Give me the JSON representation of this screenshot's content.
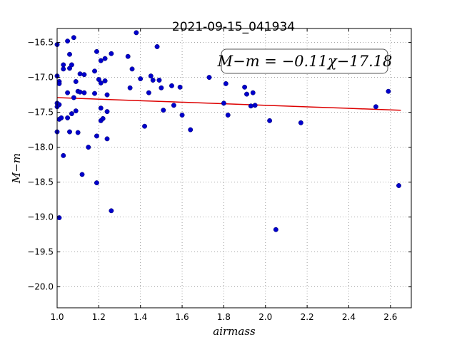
{
  "colors": {
    "points": "#0000cc",
    "fit_line": "#dd0000",
    "grid": "#888888",
    "frame": "#000000",
    "background": "#ffffff"
  },
  "chart_data": {
    "type": "scatter",
    "title": "2021-09-15_041934",
    "xlabel": "airmass",
    "ylabel": "M−m",
    "xlim": [
      1.0,
      2.7
    ],
    "ylim": [
      -20.3,
      -16.3
    ],
    "y_inverted": true,
    "grid": true,
    "x_ticks": [
      1.0,
      1.2,
      1.4,
      1.6,
      1.8,
      2.0,
      2.2,
      2.4,
      2.6
    ],
    "x_tick_labels": [
      "1.0",
      "1.2",
      "1.4",
      "1.6",
      "1.8",
      "2.0",
      "2.2",
      "2.4",
      "2.6"
    ],
    "y_ticks": [
      -16.5,
      -17.0,
      -17.5,
      -18.0,
      -18.5,
      -19.0,
      -19.5,
      -20.0
    ],
    "y_tick_labels": [
      "−16.5",
      "−17.0",
      "−17.5",
      "−18.0",
      "−18.5",
      "−19.0",
      "−19.5",
      "−20.0"
    ],
    "annotation": "M−m = −0.11χ−17.18",
    "fit": {
      "slope": -0.11,
      "intercept": -17.18,
      "x_range": [
        1.0,
        2.65
      ]
    },
    "points": [
      [
        1.0,
        -16.53
      ],
      [
        1.0,
        -16.98
      ],
      [
        1.01,
        -17.06
      ],
      [
        1.01,
        -17.09
      ],
      [
        1.0,
        -17.37
      ],
      [
        1.01,
        -17.39
      ],
      [
        1.0,
        -17.42
      ],
      [
        1.0,
        -17.78
      ],
      [
        1.01,
        -17.6
      ],
      [
        1.02,
        -17.58
      ],
      [
        1.01,
        -19.01
      ],
      [
        1.03,
        -16.82
      ],
      [
        1.03,
        -16.88
      ],
      [
        1.03,
        -18.12
      ],
      [
        1.05,
        -16.48
      ],
      [
        1.05,
        -17.22
      ],
      [
        1.05,
        -17.58
      ],
      [
        1.06,
        -16.67
      ],
      [
        1.06,
        -16.87
      ],
      [
        1.06,
        -17.78
      ],
      [
        1.07,
        -16.82
      ],
      [
        1.07,
        -17.52
      ],
      [
        1.08,
        -16.43
      ],
      [
        1.08,
        -17.29
      ],
      [
        1.09,
        -17.48
      ],
      [
        1.09,
        -17.06
      ],
      [
        1.1,
        -17.2
      ],
      [
        1.11,
        -17.21
      ],
      [
        1.1,
        -17.79
      ],
      [
        1.11,
        -16.95
      ],
      [
        1.13,
        -16.96
      ],
      [
        1.13,
        -17.22
      ],
      [
        1.12,
        -18.39
      ],
      [
        1.15,
        -18.0
      ],
      [
        1.18,
        -16.91
      ],
      [
        1.18,
        -17.23
      ],
      [
        1.19,
        -16.63
      ],
      [
        1.2,
        -17.03
      ],
      [
        1.19,
        -17.84
      ],
      [
        1.19,
        -18.51
      ],
      [
        1.21,
        -16.76
      ],
      [
        1.21,
        -17.08
      ],
      [
        1.21,
        -17.44
      ],
      [
        1.21,
        -17.62
      ],
      [
        1.22,
        -17.59
      ],
      [
        1.23,
        -16.73
      ],
      [
        1.23,
        -17.05
      ],
      [
        1.24,
        -17.25
      ],
      [
        1.24,
        -17.49
      ],
      [
        1.24,
        -17.88
      ],
      [
        1.26,
        -16.66
      ],
      [
        1.26,
        -18.91
      ],
      [
        1.34,
        -16.7
      ],
      [
        1.35,
        -17.15
      ],
      [
        1.36,
        -16.88
      ],
      [
        1.38,
        -16.36
      ],
      [
        1.4,
        -17.02
      ],
      [
        1.42,
        -17.7
      ],
      [
        1.44,
        -17.22
      ],
      [
        1.45,
        -16.98
      ],
      [
        1.46,
        -17.04
      ],
      [
        1.48,
        -16.56
      ],
      [
        1.49,
        -17.04
      ],
      [
        1.5,
        -17.15
      ],
      [
        1.51,
        -17.47
      ],
      [
        1.55,
        -17.12
      ],
      [
        1.56,
        -17.4
      ],
      [
        1.59,
        -17.14
      ],
      [
        1.6,
        -17.54
      ],
      [
        1.64,
        -17.75
      ],
      [
        1.73,
        -17.0
      ],
      [
        1.8,
        -17.37
      ],
      [
        1.81,
        -17.09
      ],
      [
        1.82,
        -17.54
      ],
      [
        1.9,
        -17.14
      ],
      [
        1.91,
        -17.24
      ],
      [
        1.93,
        -17.41
      ],
      [
        1.94,
        -17.22
      ],
      [
        1.95,
        -17.4
      ],
      [
        2.02,
        -17.62
      ],
      [
        2.05,
        -19.18
      ],
      [
        2.17,
        -17.65
      ],
      [
        2.53,
        -17.42
      ],
      [
        2.59,
        -17.2
      ],
      [
        2.64,
        -18.55
      ]
    ]
  }
}
